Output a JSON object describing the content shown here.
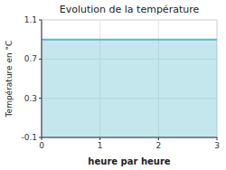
{
  "chart_data": {
    "type": "area",
    "title": "Evolution de la température",
    "xlabel": "heure par heure",
    "ylabel": "Température en °C",
    "x": [
      0,
      3
    ],
    "values": [
      0.9,
      0.9
    ],
    "color": "#55bbcc",
    "xlim": [
      0,
      3
    ],
    "ylim": [
      -0.1,
      1.1
    ],
    "xticks": [
      0,
      1,
      2,
      3
    ],
    "yticks": [
      -0.1,
      0.3,
      0.7,
      1.1
    ],
    "grid": true
  }
}
